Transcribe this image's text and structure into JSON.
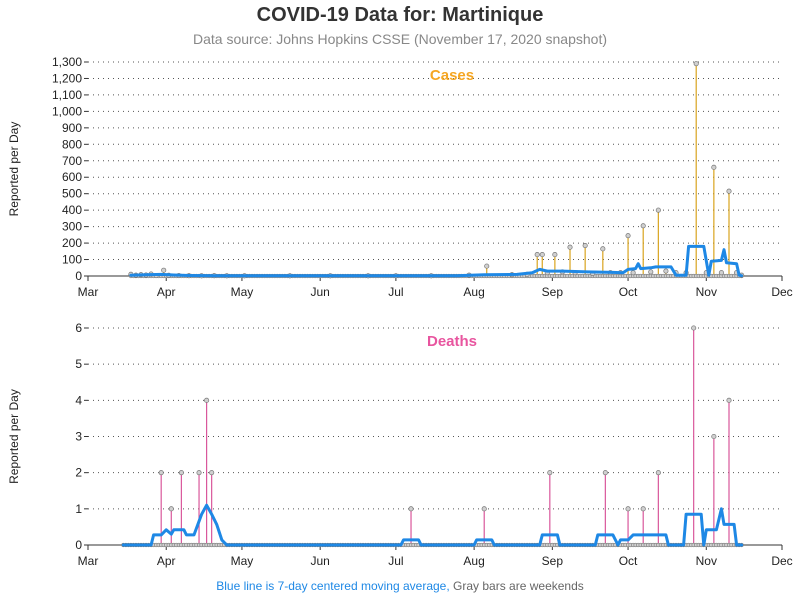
{
  "title": "COVID-19 Data for: Martinique",
  "subtitle": "Data source: Johns Hopkins CSSE (November 17, 2020 snapshot)",
  "footnote": {
    "blue_part": "Blue line is 7-day centered moving average,",
    "gray_part": "Gray bars are weekends"
  },
  "colors": {
    "cases": "#f5a623",
    "cases_stem": "#d9a41e",
    "deaths": "#e8559f",
    "deaths_stem": "#d9579b",
    "moving_average": "#1e88e5",
    "marker_fill": "#d0d0d0",
    "marker_edge": "#777777"
  },
  "chart_data": [
    {
      "type": "line",
      "title": "Cases",
      "ylabel": "Reported per Day",
      "xlabel": "",
      "x_range": [
        "2020-03-01",
        "2020-12-01"
      ],
      "x_ticks": [
        "Mar",
        "Apr",
        "May",
        "Jun",
        "Jul",
        "Aug",
        "Sep",
        "Oct",
        "Nov",
        "Dec"
      ],
      "ylim": [
        0,
        1300
      ],
      "y_ticks": [
        0,
        100,
        200,
        300,
        400,
        500,
        600,
        700,
        800,
        900,
        1000,
        1100,
        1200,
        1300
      ],
      "y_tick_labels": [
        "0",
        "100",
        "200",
        "300",
        "400",
        "500",
        "600",
        "700",
        "800",
        "900",
        "1,000",
        "1,100",
        "1,200",
        "1,300"
      ],
      "grid": "horizontal-dotted",
      "series": [
        {
          "name": "Reported per day",
          "points": [
            [
              "2020-03-18",
              10
            ],
            [
              "2020-03-20",
              5
            ],
            [
              "2020-03-22",
              8
            ],
            [
              "2020-03-24",
              6
            ],
            [
              "2020-03-26",
              12
            ],
            [
              "2020-03-28",
              3
            ],
            [
              "2020-03-31",
              35
            ],
            [
              "2020-04-02",
              4
            ],
            [
              "2020-04-06",
              3
            ],
            [
              "2020-04-10",
              2
            ],
            [
              "2020-04-15",
              1
            ],
            [
              "2020-04-20",
              2
            ],
            [
              "2020-04-25",
              1
            ],
            [
              "2020-05-02",
              1
            ],
            [
              "2020-05-20",
              1
            ],
            [
              "2020-06-05",
              1
            ],
            [
              "2020-06-20",
              1
            ],
            [
              "2020-07-01",
              1
            ],
            [
              "2020-07-15",
              1
            ],
            [
              "2020-07-30",
              5
            ],
            [
              "2020-08-06",
              60
            ],
            [
              "2020-08-16",
              8
            ],
            [
              "2020-08-22",
              10
            ],
            [
              "2020-08-26",
              130
            ],
            [
              "2020-08-28",
              130
            ],
            [
              "2020-08-30",
              20
            ],
            [
              "2020-09-02",
              130
            ],
            [
              "2020-09-05",
              25
            ],
            [
              "2020-09-08",
              175
            ],
            [
              "2020-09-10",
              20
            ],
            [
              "2020-09-14",
              185
            ],
            [
              "2020-09-17",
              15
            ],
            [
              "2020-09-21",
              165
            ],
            [
              "2020-09-24",
              20
            ],
            [
              "2020-09-28",
              20
            ],
            [
              "2020-10-01",
              245
            ],
            [
              "2020-10-03",
              20
            ],
            [
              "2020-10-07",
              305
            ],
            [
              "2020-10-10",
              25
            ],
            [
              "2020-10-13",
              400
            ],
            [
              "2020-10-16",
              30
            ],
            [
              "2020-10-20",
              20
            ],
            [
              "2020-10-24",
              20
            ],
            [
              "2020-10-28",
              1290
            ],
            [
              "2020-11-01",
              20
            ],
            [
              "2020-11-04",
              660
            ],
            [
              "2020-11-07",
              20
            ],
            [
              "2020-11-10",
              515
            ],
            [
              "2020-11-13",
              20
            ],
            [
              "2020-11-15",
              5
            ]
          ]
        },
        {
          "name": "7-day centered moving average",
          "points": [
            [
              "2020-03-18",
              5
            ],
            [
              "2020-03-24",
              8
            ],
            [
              "2020-03-30",
              10
            ],
            [
              "2020-04-04",
              6
            ],
            [
              "2020-04-10",
              3
            ],
            [
              "2020-04-20",
              1
            ],
            [
              "2020-05-10",
              1
            ],
            [
              "2020-06-20",
              1
            ],
            [
              "2020-07-25",
              1
            ],
            [
              "2020-08-05",
              8
            ],
            [
              "2020-08-18",
              10
            ],
            [
              "2020-08-24",
              20
            ],
            [
              "2020-08-27",
              40
            ],
            [
              "2020-08-30",
              30
            ],
            [
              "2020-09-05",
              30
            ],
            [
              "2020-09-15",
              25
            ],
            [
              "2020-09-25",
              22
            ],
            [
              "2020-09-29",
              20
            ],
            [
              "2020-10-01",
              40
            ],
            [
              "2020-10-04",
              45
            ],
            [
              "2020-10-05",
              75
            ],
            [
              "2020-10-06",
              45
            ],
            [
              "2020-10-10",
              50
            ],
            [
              "2020-10-12",
              55
            ],
            [
              "2020-10-18",
              55
            ],
            [
              "2020-10-20",
              5
            ],
            [
              "2020-10-24",
              5
            ],
            [
              "2020-10-25",
              180
            ],
            [
              "2020-10-31",
              180
            ],
            [
              "2020-11-02",
              5
            ],
            [
              "2020-11-03",
              90
            ],
            [
              "2020-11-07",
              95
            ],
            [
              "2020-11-08",
              160
            ],
            [
              "2020-11-09",
              80
            ],
            [
              "2020-11-13",
              75
            ],
            [
              "2020-11-14",
              5
            ],
            [
              "2020-11-15",
              2
            ]
          ]
        }
      ]
    },
    {
      "type": "line",
      "title": "Deaths",
      "ylabel": "Reported per Day",
      "xlabel": "",
      "x_range": [
        "2020-03-01",
        "2020-12-01"
      ],
      "x_ticks": [
        "Mar",
        "Apr",
        "May",
        "Jun",
        "Jul",
        "Aug",
        "Sep",
        "Oct",
        "Nov",
        "Dec"
      ],
      "ylim": [
        0,
        6
      ],
      "y_ticks": [
        0,
        1,
        2,
        3,
        4,
        5,
        6
      ],
      "y_tick_labels": [
        "0",
        "1",
        "2",
        "3",
        "4",
        "5",
        "6"
      ],
      "grid": "horizontal-dotted",
      "series": [
        {
          "name": "Reported per day",
          "points": [
            [
              "2020-03-30",
              2
            ],
            [
              "2020-04-03",
              1
            ],
            [
              "2020-04-07",
              2
            ],
            [
              "2020-04-14",
              2
            ],
            [
              "2020-04-17",
              4
            ],
            [
              "2020-04-19",
              2
            ],
            [
              "2020-07-07",
              1
            ],
            [
              "2020-08-05",
              1
            ],
            [
              "2020-08-31",
              2
            ],
            [
              "2020-09-22",
              2
            ],
            [
              "2020-10-01",
              1
            ],
            [
              "2020-10-07",
              1
            ],
            [
              "2020-10-13",
              2
            ],
            [
              "2020-10-27",
              6
            ],
            [
              "2020-11-04",
              3
            ],
            [
              "2020-11-10",
              4
            ]
          ]
        },
        {
          "name": "7-day centered moving average",
          "points": [
            [
              "2020-03-15",
              0
            ],
            [
              "2020-03-26",
              0
            ],
            [
              "2020-03-27",
              0.28
            ],
            [
              "2020-03-30",
              0.28
            ],
            [
              "2020-04-01",
              0.42
            ],
            [
              "2020-04-03",
              0.3
            ],
            [
              "2020-04-04",
              0.42
            ],
            [
              "2020-04-08",
              0.42
            ],
            [
              "2020-04-09",
              0.28
            ],
            [
              "2020-04-12",
              0.28
            ],
            [
              "2020-04-15",
              0.85
            ],
            [
              "2020-04-17",
              1.1
            ],
            [
              "2020-04-19",
              0.85
            ],
            [
              "2020-04-21",
              0.57
            ],
            [
              "2020-04-23",
              0.14
            ],
            [
              "2020-04-25",
              0
            ],
            [
              "2020-07-03",
              0
            ],
            [
              "2020-07-04",
              0.14
            ],
            [
              "2020-07-10",
              0.14
            ],
            [
              "2020-07-11",
              0
            ],
            [
              "2020-08-01",
              0
            ],
            [
              "2020-08-02",
              0.14
            ],
            [
              "2020-08-08",
              0.14
            ],
            [
              "2020-08-09",
              0
            ],
            [
              "2020-08-27",
              0
            ],
            [
              "2020-08-28",
              0.28
            ],
            [
              "2020-09-03",
              0.28
            ],
            [
              "2020-09-04",
              0
            ],
            [
              "2020-09-18",
              0
            ],
            [
              "2020-09-19",
              0.28
            ],
            [
              "2020-09-25",
              0.28
            ],
            [
              "2020-09-27",
              0
            ],
            [
              "2020-09-28",
              0.14
            ],
            [
              "2020-10-01",
              0.14
            ],
            [
              "2020-10-03",
              0.28
            ],
            [
              "2020-10-09",
              0.28
            ],
            [
              "2020-10-10",
              0.28
            ],
            [
              "2020-10-16",
              0.28
            ],
            [
              "2020-10-17",
              0
            ],
            [
              "2020-10-23",
              0
            ],
            [
              "2020-10-24",
              0.85
            ],
            [
              "2020-10-30",
              0.85
            ],
            [
              "2020-10-31",
              0
            ],
            [
              "2020-11-01",
              0.42
            ],
            [
              "2020-11-05",
              0.42
            ],
            [
              "2020-11-07",
              1.0
            ],
            [
              "2020-11-08",
              0.57
            ],
            [
              "2020-11-12",
              0.57
            ],
            [
              "2020-11-13",
              0
            ],
            [
              "2020-11-15",
              0
            ]
          ]
        }
      ]
    }
  ]
}
